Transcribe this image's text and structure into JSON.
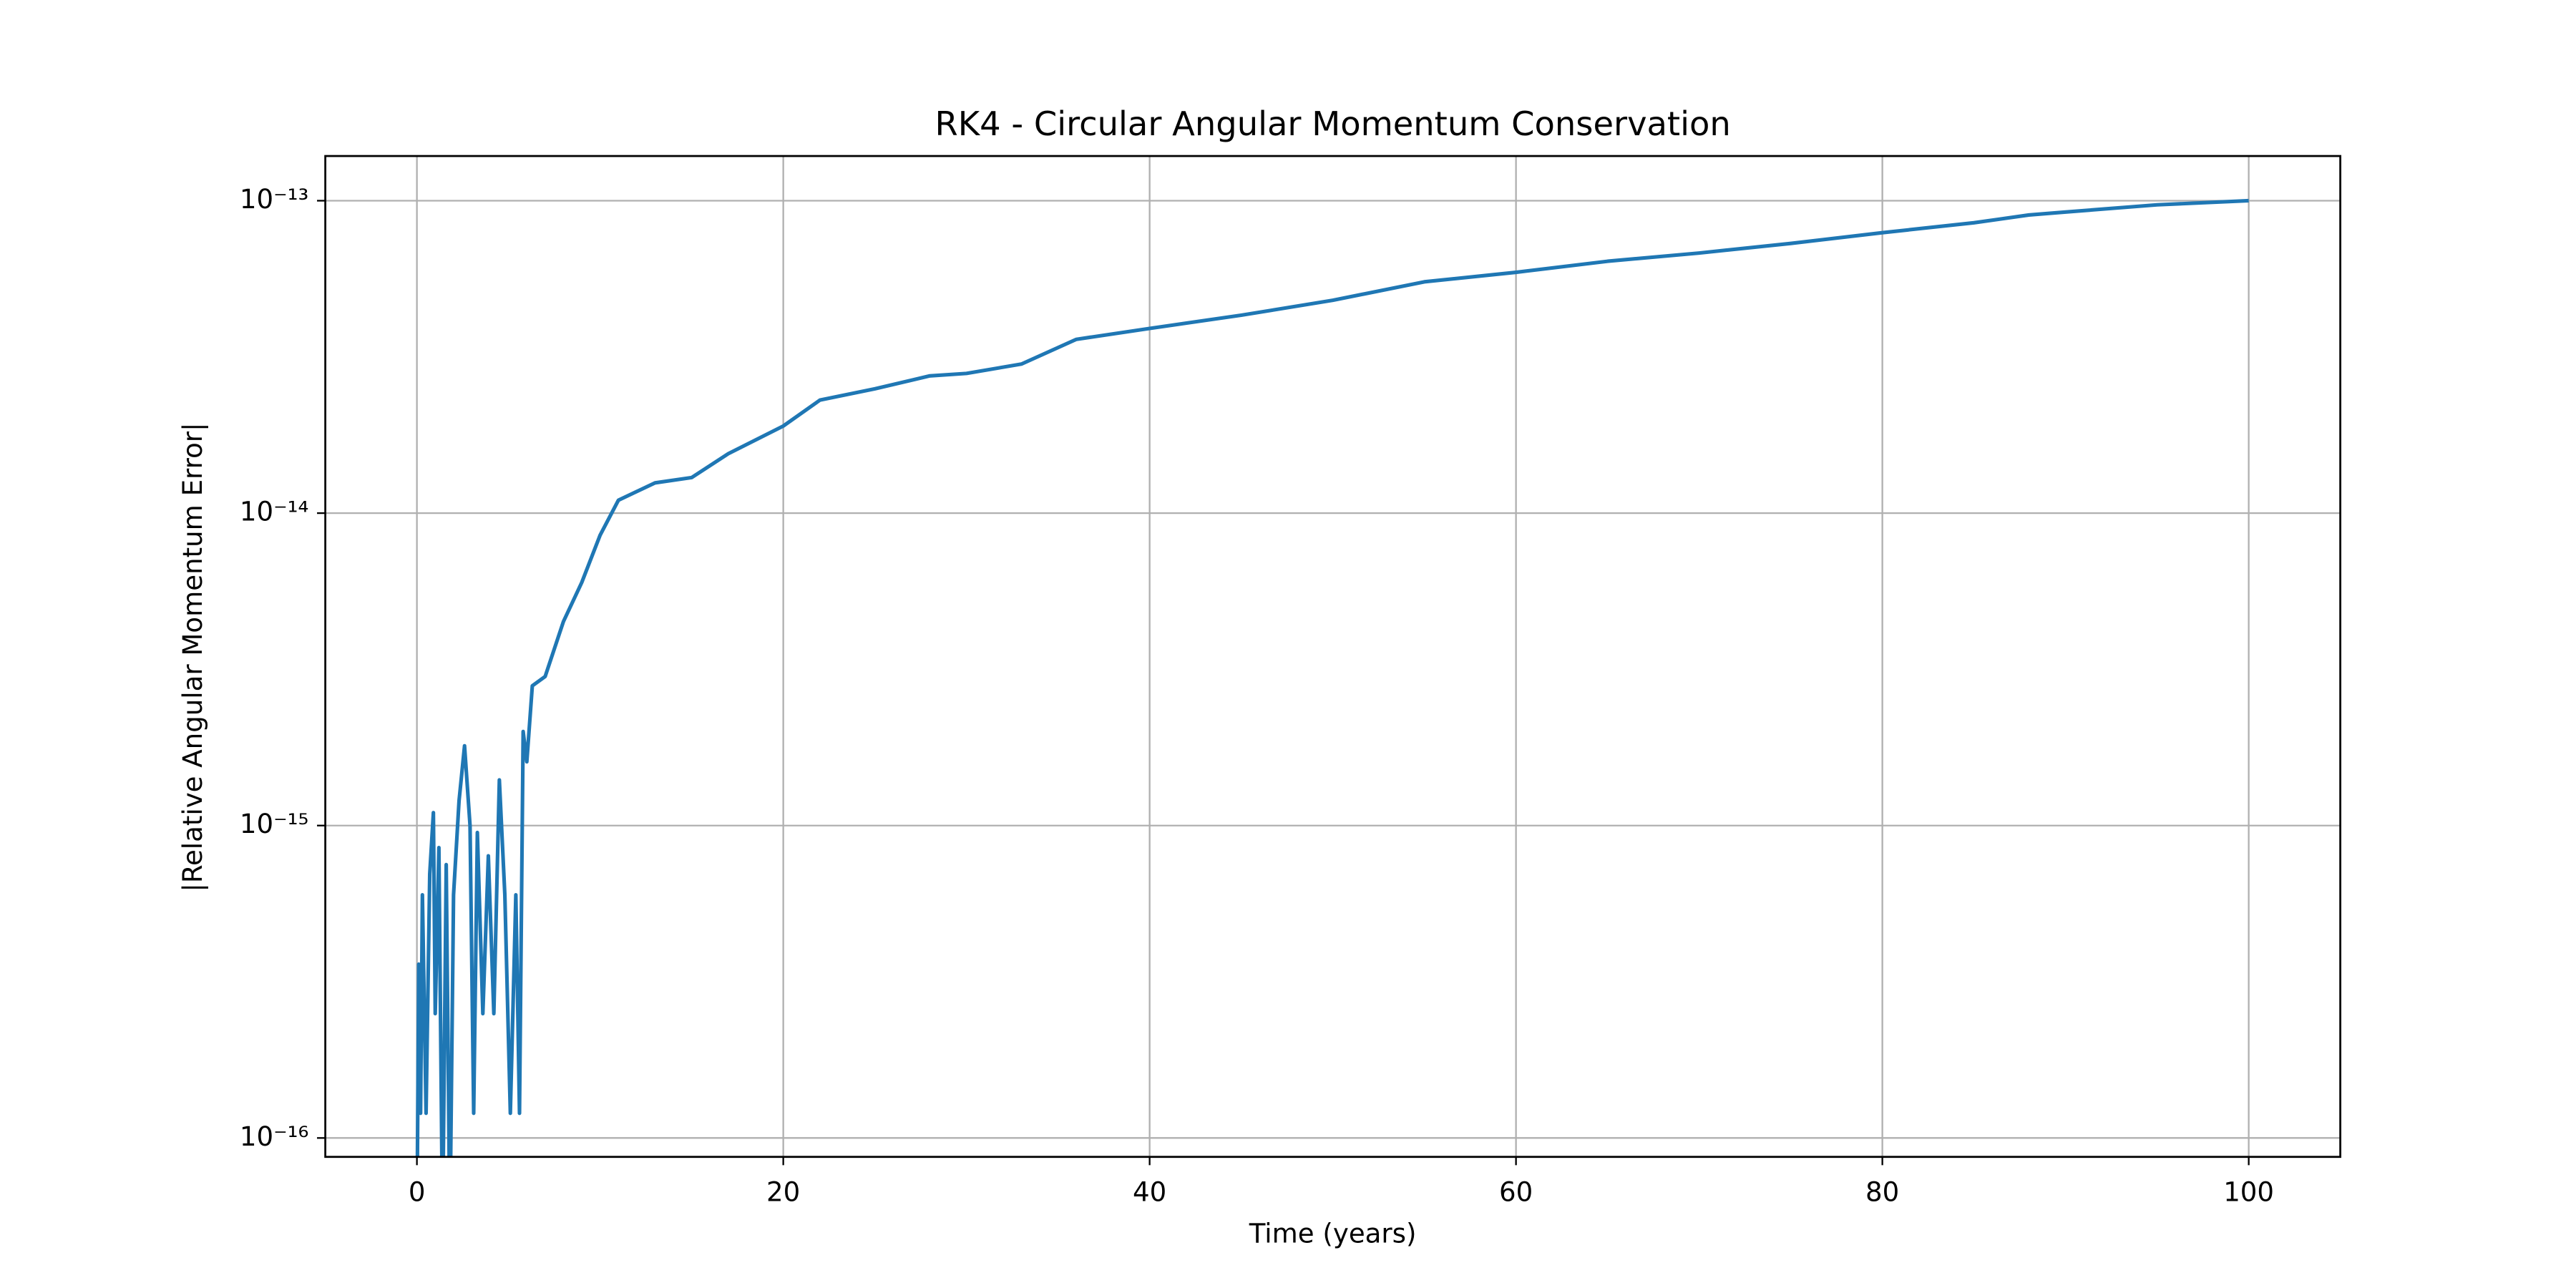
{
  "chart_data": {
    "type": "line",
    "title": "RK4 - Circular Angular Momentum Conservation",
    "x_label": "Time (years)",
    "y_label": "|Relative Angular Momentum Error|",
    "log_y": true,
    "grid": true,
    "xlim": [
      -5,
      105
    ],
    "xticks": [
      0,
      20,
      40,
      60,
      80,
      100
    ],
    "ylim": [
      8.7e-17,
      1.39e-13
    ],
    "yticks": [
      {
        "value": 1e-16,
        "label": "10⁻¹⁶"
      },
      {
        "value": 1e-15,
        "label": "10⁻¹⁵"
      },
      {
        "value": 1e-14,
        "label": "10⁻¹⁴"
      },
      {
        "value": 1e-13,
        "label": "10⁻¹³"
      }
    ],
    "x": [
      0,
      0.1,
      0.2,
      0.3,
      0.5,
      0.7,
      0.9,
      1.0,
      1.2,
      1.4,
      1.6,
      1.8,
      2.0,
      2.3,
      2.6,
      2.9,
      3.1,
      3.3,
      3.6,
      3.9,
      4.2,
      4.5,
      4.8,
      5.1,
      5.4,
      5.6,
      5.8,
      6.0,
      6.3,
      7,
      8,
      9,
      10,
      11,
      13,
      15,
      17,
      20,
      22,
      25,
      28,
      30,
      33,
      36,
      40,
      45,
      50,
      55,
      60,
      65,
      70,
      75,
      80,
      85,
      88,
      90,
      95,
      100
    ],
    "series": [
      {
        "name": "RK4",
        "color": "#1f77b4",
        "values": [
          5e-17,
          3.6e-16,
          1.2e-16,
          6e-16,
          1.2e-16,
          7e-16,
          1.1e-15,
          2.5e-16,
          8.5e-16,
          5e-17,
          7.5e-16,
          5e-17,
          6e-16,
          1.2e-15,
          1.8e-15,
          1e-15,
          1.2e-16,
          9.5e-16,
          2.5e-16,
          8e-16,
          2.5e-16,
          1.4e-15,
          6e-16,
          1.2e-16,
          6e-16,
          1.2e-16,
          2e-15,
          1.6e-15,
          2.8e-15,
          3e-15,
          4.5e-15,
          6e-15,
          8.5e-15,
          1.1e-14,
          1.25e-14,
          1.3e-14,
          1.55e-14,
          1.9e-14,
          2.3e-14,
          2.5e-14,
          2.75e-14,
          2.8e-14,
          3e-14,
          3.6e-14,
          3.9e-14,
          4.3e-14,
          4.8e-14,
          5.5e-14,
          5.9e-14,
          6.4e-14,
          6.8e-14,
          7.3e-14,
          7.9e-14,
          8.5e-14,
          9e-14,
          9.2e-14,
          9.7e-14,
          1e-13
        ]
      }
    ]
  }
}
